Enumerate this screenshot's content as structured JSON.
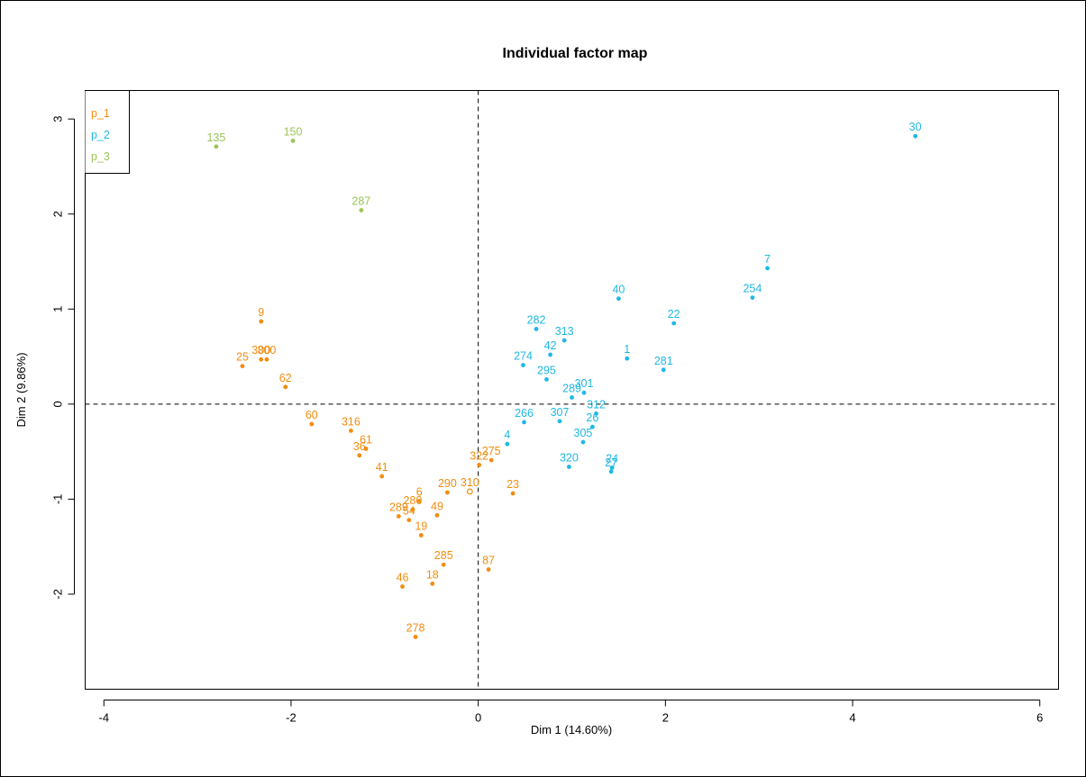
{
  "chart_data": {
    "type": "scatter",
    "title": "Individual factor map",
    "xlabel": "Dim 1 (14.60%)",
    "ylabel": "Dim 2 (9.86%)",
    "xlim": [
      -4.2,
      6.2
    ],
    "ylim": [
      -3.0,
      3.3
    ],
    "x_ticks": [
      -4,
      -2,
      0,
      2,
      4,
      6
    ],
    "y_ticks": [
      -2,
      -1,
      0,
      1,
      2,
      3
    ],
    "x_tick_labels": [
      "-4",
      "-2",
      "0",
      "2",
      "4",
      "6"
    ],
    "y_tick_labels": [
      "-2",
      "-1",
      "0",
      "1",
      "2",
      "3"
    ],
    "reference_lines": {
      "x": 0,
      "y": 0,
      "style": "dashed"
    },
    "grid": false,
    "legend": {
      "placement": "top-left",
      "entries": [
        {
          "name": "p_1",
          "color": "#F28C0F"
        },
        {
          "name": "p_2",
          "color": "#1EB8E6"
        },
        {
          "name": "p_3",
          "color": "#9CC45A"
        }
      ]
    },
    "series": [
      {
        "name": "p_1",
        "color": "#F28C0F",
        "points": [
          {
            "label": "9",
            "x": -2.32,
            "y": 0.87
          },
          {
            "label": "300",
            "x": -2.32,
            "y": 0.47
          },
          {
            "label": "300",
            "x": -2.26,
            "y": 0.47
          },
          {
            "label": "25",
            "x": -2.52,
            "y": 0.4
          },
          {
            "label": "62",
            "x": -2.06,
            "y": 0.18
          },
          {
            "label": "60",
            "x": -1.78,
            "y": -0.21
          },
          {
            "label": "316",
            "x": -1.36,
            "y": -0.28
          },
          {
            "label": "61",
            "x": -1.2,
            "y": -0.47
          },
          {
            "label": "36",
            "x": -1.27,
            "y": -0.54
          },
          {
            "label": "41",
            "x": -1.03,
            "y": -0.76
          },
          {
            "label": "6",
            "x": -0.63,
            "y": -1.02
          },
          {
            "label": "280",
            "x": -0.7,
            "y": -1.11
          },
          {
            "label": "289",
            "x": -0.85,
            "y": -1.18
          },
          {
            "label": "54",
            "x": -0.74,
            "y": -1.22
          },
          {
            "label": "19",
            "x": -0.61,
            "y": -1.38
          },
          {
            "label": "49",
            "x": -0.44,
            "y": -1.17
          },
          {
            "label": "290",
            "x": -0.33,
            "y": -0.93
          },
          {
            "label": "310",
            "x": -0.09,
            "y": -0.92,
            "hollow": true
          },
          {
            "label": "322",
            "x": 0.01,
            "y": -0.64
          },
          {
            "label": "275",
            "x": 0.14,
            "y": -0.59
          },
          {
            "label": "23",
            "x": 0.37,
            "y": -0.94
          },
          {
            "label": "285",
            "x": -0.37,
            "y": -1.69
          },
          {
            "label": "87",
            "x": 0.11,
            "y": -1.74
          },
          {
            "label": "18",
            "x": -0.49,
            "y": -1.89
          },
          {
            "label": "46",
            "x": -0.81,
            "y": -1.92
          },
          {
            "label": "278",
            "x": -0.67,
            "y": -2.45
          }
        ]
      },
      {
        "name": "p_2",
        "color": "#1EB8E6",
        "points": [
          {
            "label": "30",
            "x": 4.67,
            "y": 2.82
          },
          {
            "label": "7",
            "x": 3.09,
            "y": 1.43
          },
          {
            "label": "254",
            "x": 2.93,
            "y": 1.12
          },
          {
            "label": "40",
            "x": 1.5,
            "y": 1.11
          },
          {
            "label": "22",
            "x": 2.09,
            "y": 0.85
          },
          {
            "label": "282",
            "x": 0.62,
            "y": 0.79
          },
          {
            "label": "313",
            "x": 0.92,
            "y": 0.67
          },
          {
            "label": "42",
            "x": 0.77,
            "y": 0.52
          },
          {
            "label": "1",
            "x": 1.59,
            "y": 0.48
          },
          {
            "label": "274",
            "x": 0.48,
            "y": 0.41
          },
          {
            "label": "281",
            "x": 1.98,
            "y": 0.36
          },
          {
            "label": "295",
            "x": 0.73,
            "y": 0.26
          },
          {
            "label": "301",
            "x": 1.13,
            "y": 0.12
          },
          {
            "label": "289",
            "x": 1.0,
            "y": 0.07
          },
          {
            "label": "312",
            "x": 1.26,
            "y": -0.1
          },
          {
            "label": "266",
            "x": 0.49,
            "y": -0.19
          },
          {
            "label": "307",
            "x": 0.87,
            "y": -0.18
          },
          {
            "label": "26",
            "x": 1.22,
            "y": -0.24
          },
          {
            "label": "305",
            "x": 1.12,
            "y": -0.4
          },
          {
            "label": "4",
            "x": 0.31,
            "y": -0.42
          },
          {
            "label": "320",
            "x": 0.97,
            "y": -0.66
          },
          {
            "label": "24",
            "x": 1.43,
            "y": -0.67
          },
          {
            "label": "27",
            "x": 1.42,
            "y": -0.71
          }
        ]
      },
      {
        "name": "p_3",
        "color": "#9CC45A",
        "points": [
          {
            "label": "135",
            "x": -2.8,
            "y": 2.71
          },
          {
            "label": "150",
            "x": -1.98,
            "y": 2.77
          },
          {
            "label": "287",
            "x": -1.25,
            "y": 2.04
          }
        ]
      }
    ]
  }
}
